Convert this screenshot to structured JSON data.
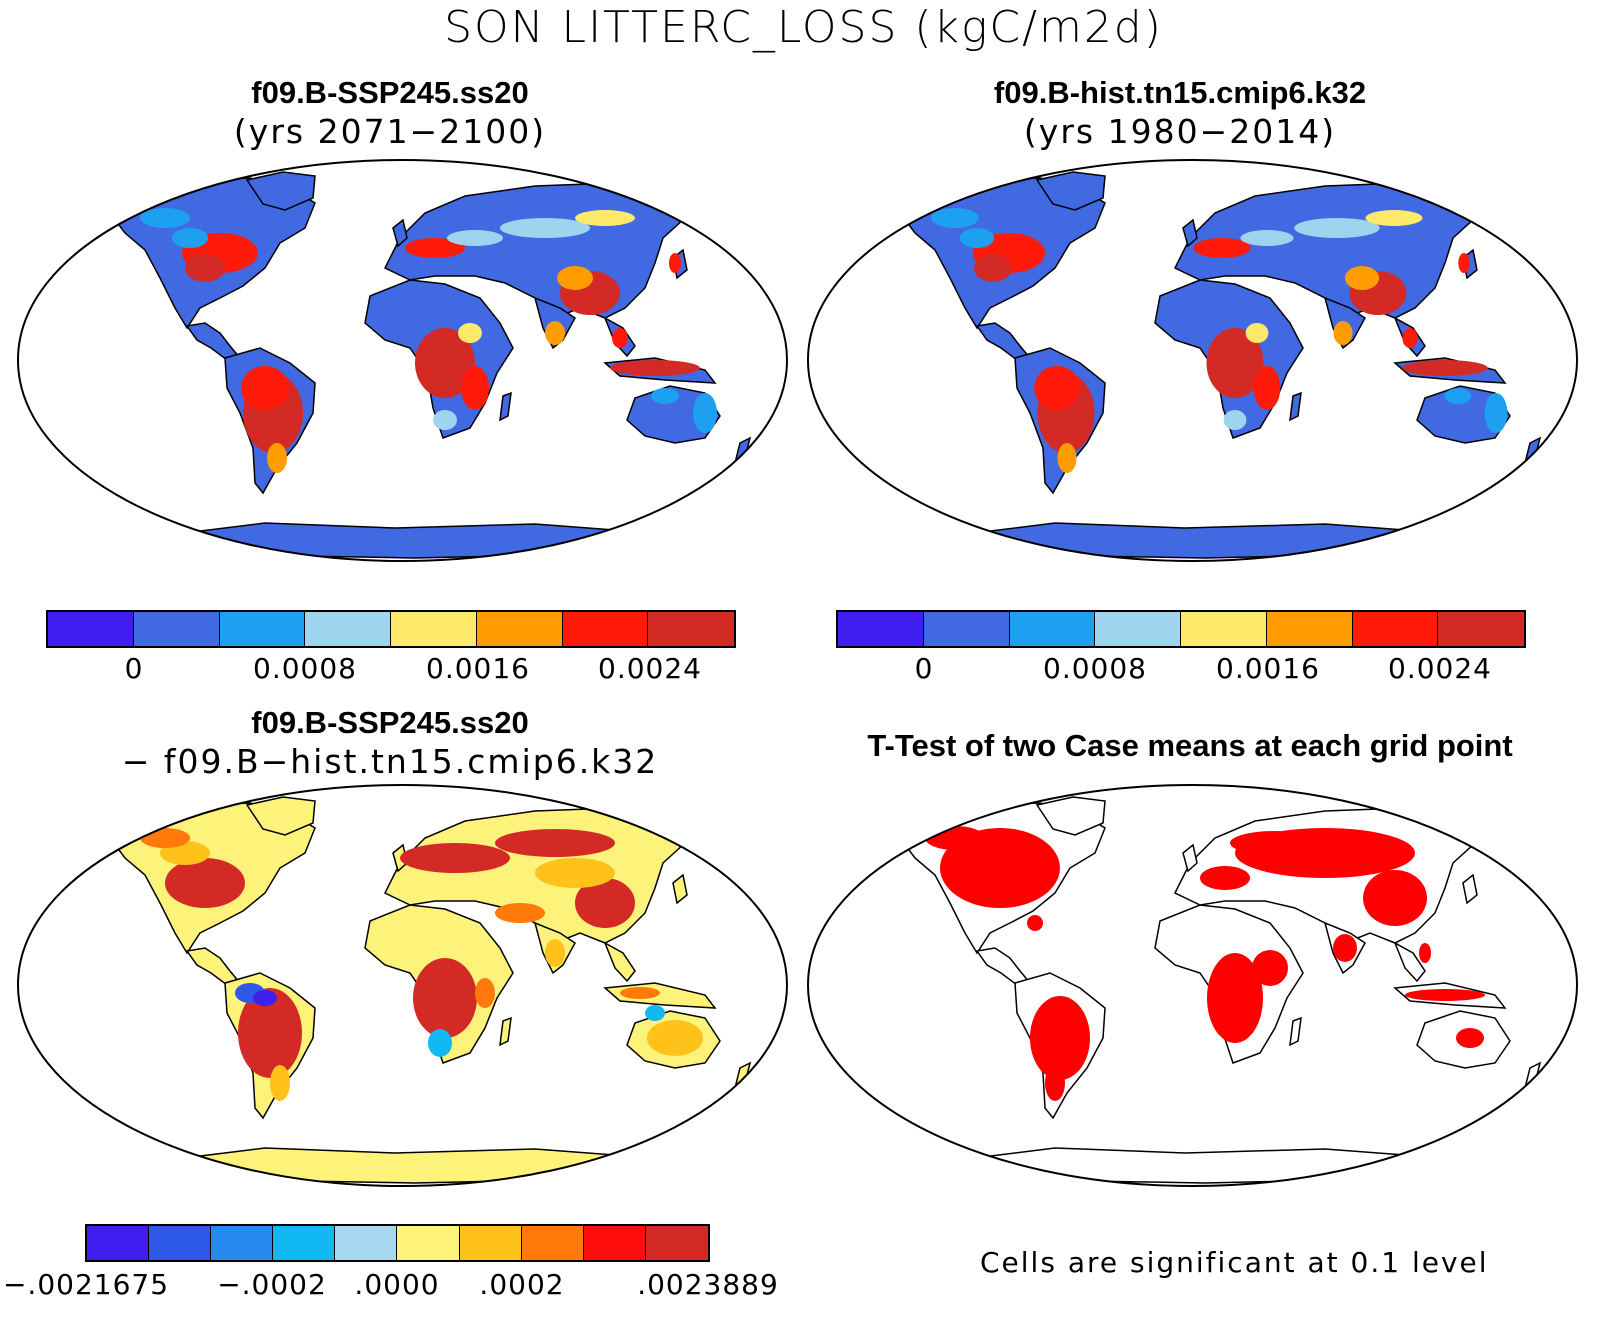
{
  "title": "SON LITTERC_LOSS (kgC/m2d)",
  "panels": {
    "top_left": {
      "title": "f09.B-SSP245.ss20",
      "subtitle": "(yrs 2071−2100)"
    },
    "top_right": {
      "title": "f09.B-hist.tn15.cmip6.k32",
      "subtitle": "(yrs 1980−2014)"
    },
    "bottom_left": {
      "title": "f09.B-SSP245.ss20",
      "subtitle": "− f09.B−hist.tn15.cmip6.k32"
    },
    "bottom_right": {
      "title": "T-Test of two Case means at each grid point",
      "note": "Cells are significant at 0.1 level"
    }
  },
  "colorbar_abs": {
    "colors": [
      "#3f1ff0",
      "#4169e1",
      "#1ea0f0",
      "#9fd4ef",
      "#fde96a",
      "#ff9c00",
      "#ff1a0a",
      "#d42a26"
    ],
    "labels": [
      "0",
      "0.0008",
      "0.0016",
      "0.0024"
    ]
  },
  "colorbar_diff": {
    "colors": [
      "#3f1ff0",
      "#2e59e6",
      "#2589ef",
      "#12b8f2",
      "#a6d7ee",
      "#fdf27a",
      "#ffc21a",
      "#ff7a0a",
      "#ff0d0d",
      "#d42a26"
    ],
    "labels": [
      "−.0021675",
      "−.0002",
      ".0000",
      ".0002",
      ".0023889"
    ]
  },
  "colors": {
    "significant": "#ff0000",
    "ocean": "#ffffff",
    "coast": "#000000"
  }
}
